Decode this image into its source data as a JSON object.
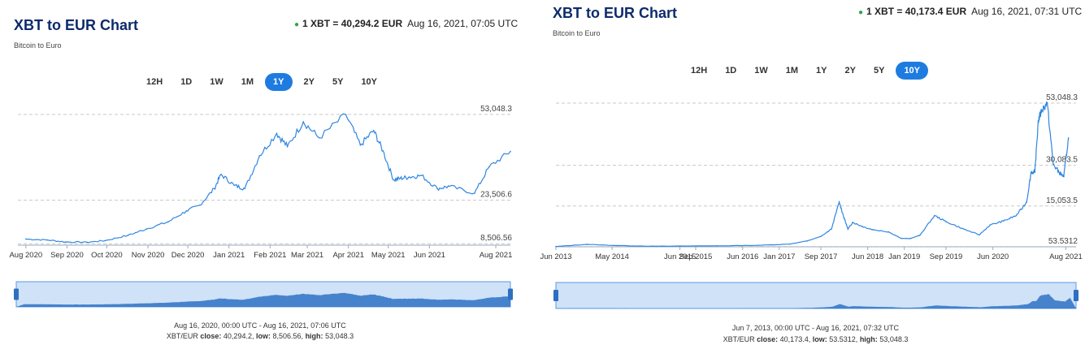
{
  "left": {
    "title": "XBT to EUR Chart",
    "subtitle": "Bitcoin to Euro",
    "quote_rate": "1 XBT = 40,294.2 EUR",
    "quote_time": "Aug 16, 2021, 07:05 UTC",
    "ranges": [
      "12H",
      "1D",
      "1W",
      "1M",
      "1Y",
      "2Y",
      "5Y",
      "10Y"
    ],
    "active_range": "1Y",
    "footer_range": "Aug 16, 2020, 00:00 UTC - Aug 16, 2021, 07:06 UTC",
    "footer_pair": "XBT/EUR",
    "footer_close_label": "close:",
    "footer_close": "40,294.2",
    "footer_low_label": "low:",
    "footer_low": "8,506.56",
    "footer_high_label": "high:",
    "footer_high": "53,048.3"
  },
  "right": {
    "title": "XBT to EUR Chart",
    "subtitle": "Bitcoin to Euro",
    "quote_rate": "1 XBT = 40,173.4 EUR",
    "quote_time": "Aug 16, 2021, 07:31 UTC",
    "ranges": [
      "12H",
      "1D",
      "1W",
      "1M",
      "1Y",
      "2Y",
      "5Y",
      "10Y"
    ],
    "active_range": "10Y",
    "footer_range": "Jun 7, 2013, 00:00 UTC - Aug 16, 2021, 07:32 UTC",
    "footer_pair": "XBT/EUR",
    "footer_close_label": "close:",
    "footer_close": "40,173.4",
    "footer_low_label": "low:",
    "footer_low": "53.5312",
    "footer_high_label": "high:",
    "footer_high": "53,048.3"
  },
  "colors": {
    "accent": "#1e7be0",
    "line": "#2f86e0",
    "title": "#0d2b6b",
    "live_dot": "#2aa84a"
  },
  "chart_data": [
    {
      "type": "line",
      "series": [
        {
          "x": [
            "2020-08-16",
            "2020-09-01",
            "2020-09-15",
            "2020-10-01",
            "2020-10-15",
            "2020-11-01",
            "2020-11-15",
            "2020-12-01",
            "2020-12-15",
            "2020-12-25",
            "2021-01-05",
            "2021-01-10",
            "2021-01-20",
            "2021-01-28",
            "2021-02-08",
            "2021-02-21",
            "2021-03-01",
            "2021-03-13",
            "2021-03-25",
            "2021-04-14",
            "2021-04-25",
            "2021-05-05",
            "2021-05-12",
            "2021-05-20",
            "2021-05-25",
            "2021-06-01",
            "2021-06-10",
            "2021-06-22",
            "2021-07-01",
            "2021-07-20",
            "2021-07-31",
            "2021-08-16"
          ],
          "values": [
            10100,
            9800,
            9100,
            9000,
            9600,
            11400,
            13600,
            16000,
            19800,
            21800,
            27500,
            32400,
            28600,
            27500,
            38800,
            46500,
            42000,
            50500,
            45000,
            53048.3,
            42500,
            47500,
            40500,
            30500,
            31000,
            31500,
            32000,
            27500,
            28300,
            25900,
            35000,
            40294.2
          ]
        }
      ],
      "ytick_labels": [
        "53,048.3",
        "23,506.6",
        "8,506.56"
      ],
      "ytick_values": [
        53048.3,
        23506.6,
        8506.56
      ],
      "ylim": [
        8000,
        53048.3
      ],
      "xtick_labels": [
        "Aug 2020",
        "Sep 2020",
        "Oct 2020",
        "Nov 2020",
        "Dec 2020",
        "Jan 2021",
        "Feb 2021",
        "Mar 2021",
        "Apr 2021",
        "May 2021",
        "Jun 2021",
        "Aug 2021"
      ],
      "xtick_dates": [
        "2020-08-16",
        "2020-09-16",
        "2020-10-16",
        "2020-11-16",
        "2020-12-16",
        "2021-01-16",
        "2021-02-16",
        "2021-03-16",
        "2021-04-16",
        "2021-05-16",
        "2021-06-16",
        "2021-08-05"
      ],
      "xlim": [
        "2020-08-10",
        "2021-08-16"
      ],
      "grid": "horizontal dashed"
    },
    {
      "type": "line",
      "series": [
        {
          "x": [
            "2013-06-07",
            "2013-12-05",
            "2014-06-01",
            "2015-01-15",
            "2016-01-01",
            "2016-09-01",
            "2017-03-01",
            "2017-06-15",
            "2017-09-01",
            "2017-11-01",
            "2017-12-17",
            "2018-01-15",
            "2018-02-06",
            "2018-03-05",
            "2018-05-01",
            "2018-07-01",
            "2018-10-01",
            "2018-12-15",
            "2019-02-01",
            "2019-04-01",
            "2019-06-26",
            "2019-09-01",
            "2019-12-15",
            "2020-03-13",
            "2020-05-15",
            "2020-08-01",
            "2020-10-15",
            "2020-12-15",
            "2021-01-10",
            "2021-02-01",
            "2021-02-21",
            "2021-03-13",
            "2021-04-14",
            "2021-05-19",
            "2021-06-22",
            "2021-07-20",
            "2021-08-16"
          ],
          "values": [
            100,
            900,
            450,
            200,
            350,
            550,
            1000,
            2200,
            3800,
            6500,
            16500,
            10500,
            6500,
            9000,
            7500,
            6300,
            5500,
            3100,
            3000,
            4200,
            11500,
            9300,
            6500,
            4400,
            8000,
            9500,
            11500,
            16500,
            27500,
            27500,
            46500,
            50500,
            53048.3,
            30500,
            27500,
            25900,
            40173.4
          ]
        }
      ],
      "ytick_labels": [
        "53,048.3",
        "30,083.5",
        "15,053.5",
        "53.5312"
      ],
      "ytick_values": [
        53048.3,
        30083.5,
        15053.5,
        53.5312
      ],
      "ylim": [
        0,
        53048.3
      ],
      "xtick_labels": [
        "Jun 2013",
        "May 2014",
        "Jun 2015",
        "Sep 2015",
        "Jun 2016",
        "Jan 2017",
        "Sep 2017",
        "Jun 2018",
        "Jan 2019",
        "Sep 2019",
        "Jun 2020",
        "Aug 2021"
      ],
      "xtick_dates": [
        "2013-06-07",
        "2014-05-01",
        "2015-06-01",
        "2015-09-01",
        "2016-06-01",
        "2017-01-01",
        "2017-09-01",
        "2018-06-01",
        "2019-01-01",
        "2019-09-01",
        "2020-06-01",
        "2021-08-01"
      ],
      "xlim": [
        "2013-06-07",
        "2021-09-20"
      ],
      "grid": "horizontal dashed"
    }
  ]
}
